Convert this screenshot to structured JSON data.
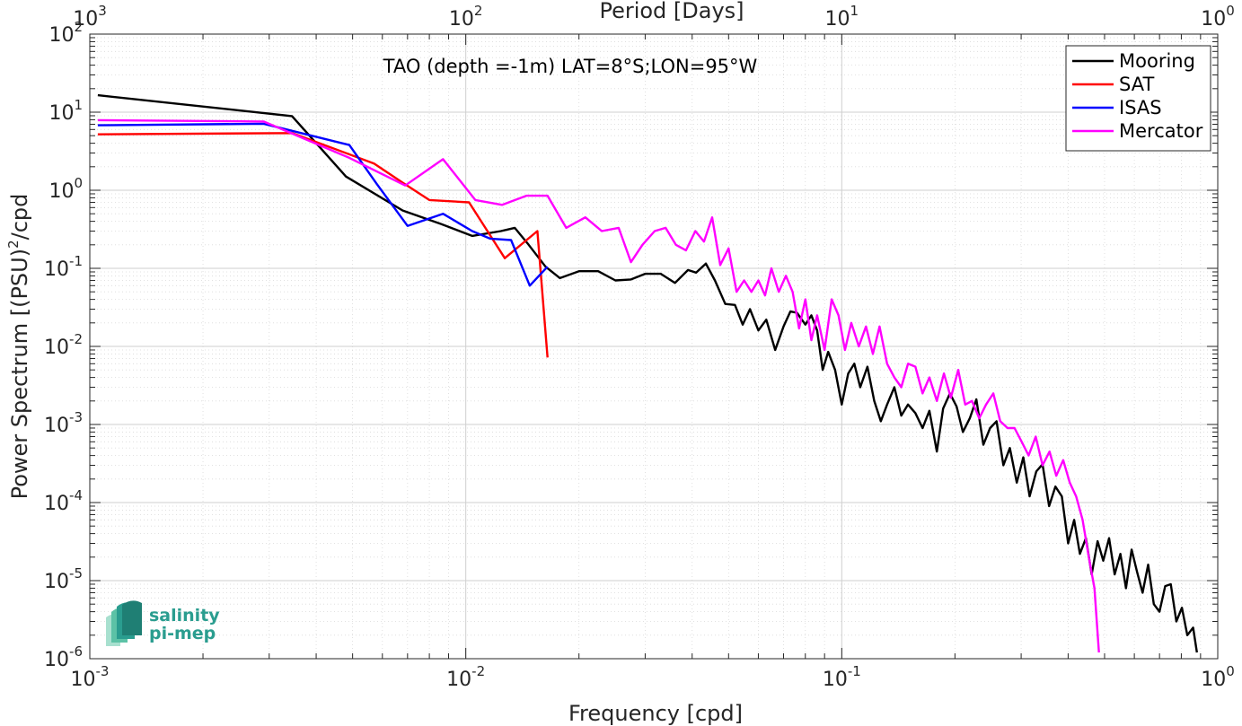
{
  "chart_data": {
    "type": "line",
    "title": "TAO (depth =-1m) LAT=8°S;LON=95°W",
    "xlabel": "Frequency [cpd]",
    "ylabel": "Power Spectrum [(PSU)",
    "ylabel_suffix": "/cpd",
    "ylabel_sup": "2",
    "x2label": "Period [Days]",
    "xscale": "log",
    "yscale": "log",
    "xlim": [
      0.001,
      1
    ],
    "ylim": [
      1e-06,
      100
    ],
    "grid": true,
    "legend_position": "top-right",
    "x_ticks": [
      {
        "value": 0.001,
        "base": "10",
        "exp": "-3"
      },
      {
        "value": 0.01,
        "base": "10",
        "exp": "-2"
      },
      {
        "value": 0.1,
        "base": "10",
        "exp": "-1"
      },
      {
        "value": 1,
        "base": "10",
        "exp": "0"
      }
    ],
    "x2_ticks": [
      {
        "value": 1000,
        "base": "10",
        "exp": "3"
      },
      {
        "value": 100,
        "base": "10",
        "exp": "2"
      },
      {
        "value": 10,
        "base": "10",
        "exp": "1"
      },
      {
        "value": 1,
        "base": "10",
        "exp": "0"
      }
    ],
    "y_ticks": [
      {
        "value": 100,
        "base": "10",
        "exp": "2"
      },
      {
        "value": 10,
        "base": "10",
        "exp": "1"
      },
      {
        "value": 1,
        "base": "10",
        "exp": "0"
      },
      {
        "value": 0.1,
        "base": "10",
        "exp": "-1"
      },
      {
        "value": 0.01,
        "base": "10",
        "exp": "-2"
      },
      {
        "value": 0.001,
        "base": "10",
        "exp": "-3"
      },
      {
        "value": 0.0001,
        "base": "10",
        "exp": "-4"
      },
      {
        "value": 1e-05,
        "base": "10",
        "exp": "-5"
      },
      {
        "value": 1e-06,
        "base": "10",
        "exp": "-6"
      }
    ],
    "series": [
      {
        "name": "Mooring",
        "color": "#000000",
        "x": [
          0.00105,
          0.00345,
          0.0048,
          0.0068,
          0.0086,
          0.0104,
          0.0124,
          0.0135,
          0.0147,
          0.0163,
          0.0178,
          0.02,
          0.0225,
          0.025,
          0.0275,
          0.03,
          0.033,
          0.036,
          0.039,
          0.041,
          0.0435,
          0.046,
          0.049,
          0.052,
          0.0545,
          0.057,
          0.06,
          0.063,
          0.0665,
          0.07,
          0.073,
          0.076,
          0.08,
          0.083,
          0.086,
          0.089,
          0.092,
          0.096,
          0.1,
          0.104,
          0.108,
          0.112,
          0.117,
          0.122,
          0.127,
          0.132,
          0.138,
          0.144,
          0.15,
          0.157,
          0.164,
          0.171,
          0.179,
          0.186,
          0.194,
          0.202,
          0.21,
          0.219,
          0.228,
          0.238,
          0.248,
          0.258,
          0.269,
          0.28,
          0.292,
          0.304,
          0.316,
          0.329,
          0.342,
          0.356,
          0.37,
          0.385,
          0.4,
          0.415,
          0.43,
          0.446,
          0.462,
          0.479,
          0.496,
          0.514,
          0.532,
          0.551,
          0.57,
          0.59,
          0.61,
          0.631,
          0.653,
          0.676,
          0.7,
          0.725,
          0.75,
          0.776,
          0.803,
          0.83,
          0.86,
          0.88
        ],
        "y": [
          16.5,
          8.9,
          1.5,
          0.55,
          0.37,
          0.26,
          0.3,
          0.33,
          0.2,
          0.105,
          0.075,
          0.092,
          0.092,
          0.07,
          0.072,
          0.085,
          0.085,
          0.065,
          0.095,
          0.088,
          0.115,
          0.07,
          0.035,
          0.034,
          0.019,
          0.03,
          0.016,
          0.022,
          0.009,
          0.018,
          0.028,
          0.027,
          0.019,
          0.025,
          0.016,
          0.005,
          0.0085,
          0.005,
          0.0018,
          0.0045,
          0.006,
          0.003,
          0.0055,
          0.002,
          0.0011,
          0.0018,
          0.003,
          0.0013,
          0.0018,
          0.0014,
          0.0009,
          0.0015,
          0.00045,
          0.0016,
          0.0025,
          0.0017,
          0.0008,
          0.0012,
          0.0021,
          0.00055,
          0.0009,
          0.0011,
          0.0003,
          0.0005,
          0.00018,
          0.00038,
          0.00012,
          0.00025,
          0.00031,
          9e-05,
          0.00016,
          0.00012,
          3e-05,
          6e-05,
          2.2e-05,
          3.5e-05,
          1.2e-05,
          3.2e-05,
          1.8e-05,
          3.5e-05,
          1.2e-05,
          2.2e-05,
          8e-06,
          2.5e-05,
          1.3e-05,
          7e-06,
          1.6e-05,
          5e-06,
          4e-06,
          8.5e-06,
          9e-06,
          3e-06,
          4.5e-06,
          2e-06,
          2.5e-06,
          1.2e-06
        ]
      },
      {
        "name": "SAT",
        "color": "#ff0000",
        "x": [
          0.00105,
          0.00345,
          0.0057,
          0.0068,
          0.008,
          0.0102,
          0.0127,
          0.0155,
          0.0165
        ],
        "y": [
          5.2,
          5.4,
          2.2,
          1.25,
          0.75,
          0.7,
          0.135,
          0.3,
          0.0072
        ]
      },
      {
        "name": "ISAS",
        "color": "#0000ff",
        "x": [
          0.00105,
          0.0029,
          0.0049,
          0.0058,
          0.007,
          0.0087,
          0.0104,
          0.0116,
          0.0132,
          0.0148,
          0.0165
        ],
        "y": [
          6.8,
          7.1,
          3.8,
          1.2,
          0.35,
          0.5,
          0.3,
          0.24,
          0.23,
          0.06,
          0.105
        ]
      },
      {
        "name": "Mercator",
        "color": "#ff00ff",
        "x": [
          0.00105,
          0.0029,
          0.0049,
          0.0069,
          0.0087,
          0.0106,
          0.0125,
          0.0145,
          0.0165,
          0.0185,
          0.0208,
          0.023,
          0.0255,
          0.0275,
          0.0295,
          0.0318,
          0.034,
          0.0362,
          0.0385,
          0.0408,
          0.043,
          0.0452,
          0.0475,
          0.05,
          0.0525,
          0.055,
          0.0575,
          0.06,
          0.0625,
          0.065,
          0.068,
          0.071,
          0.074,
          0.077,
          0.08,
          0.083,
          0.086,
          0.09,
          0.094,
          0.098,
          0.102,
          0.106,
          0.111,
          0.116,
          0.121,
          0.126,
          0.132,
          0.138,
          0.144,
          0.15,
          0.157,
          0.164,
          0.171,
          0.179,
          0.187,
          0.195,
          0.204,
          0.213,
          0.222,
          0.232,
          0.242,
          0.253,
          0.264,
          0.276,
          0.288,
          0.301,
          0.314,
          0.328,
          0.342,
          0.357,
          0.372,
          0.388,
          0.404,
          0.42,
          0.437,
          0.454,
          0.47,
          0.483
        ],
        "y": [
          7.9,
          7.6,
          2.6,
          1.15,
          2.5,
          0.75,
          0.65,
          0.85,
          0.85,
          0.33,
          0.45,
          0.3,
          0.33,
          0.12,
          0.2,
          0.3,
          0.33,
          0.2,
          0.17,
          0.3,
          0.22,
          0.45,
          0.11,
          0.18,
          0.05,
          0.07,
          0.05,
          0.07,
          0.045,
          0.1,
          0.05,
          0.08,
          0.05,
          0.017,
          0.04,
          0.012,
          0.025,
          0.009,
          0.04,
          0.025,
          0.009,
          0.02,
          0.01,
          0.018,
          0.008,
          0.018,
          0.006,
          0.004,
          0.003,
          0.006,
          0.0055,
          0.0025,
          0.004,
          0.002,
          0.0045,
          0.0022,
          0.005,
          0.0018,
          0.002,
          0.0012,
          0.0018,
          0.0025,
          0.0011,
          0.0009,
          0.0009,
          0.0006,
          0.0004,
          0.0007,
          0.0003,
          0.00045,
          0.00022,
          0.00035,
          0.00018,
          0.00012,
          6e-05,
          2e-05,
          8e-06,
          1.2e-06
        ]
      }
    ]
  },
  "logo": {
    "line1": "salinity",
    "line2": "pi-mep"
  }
}
